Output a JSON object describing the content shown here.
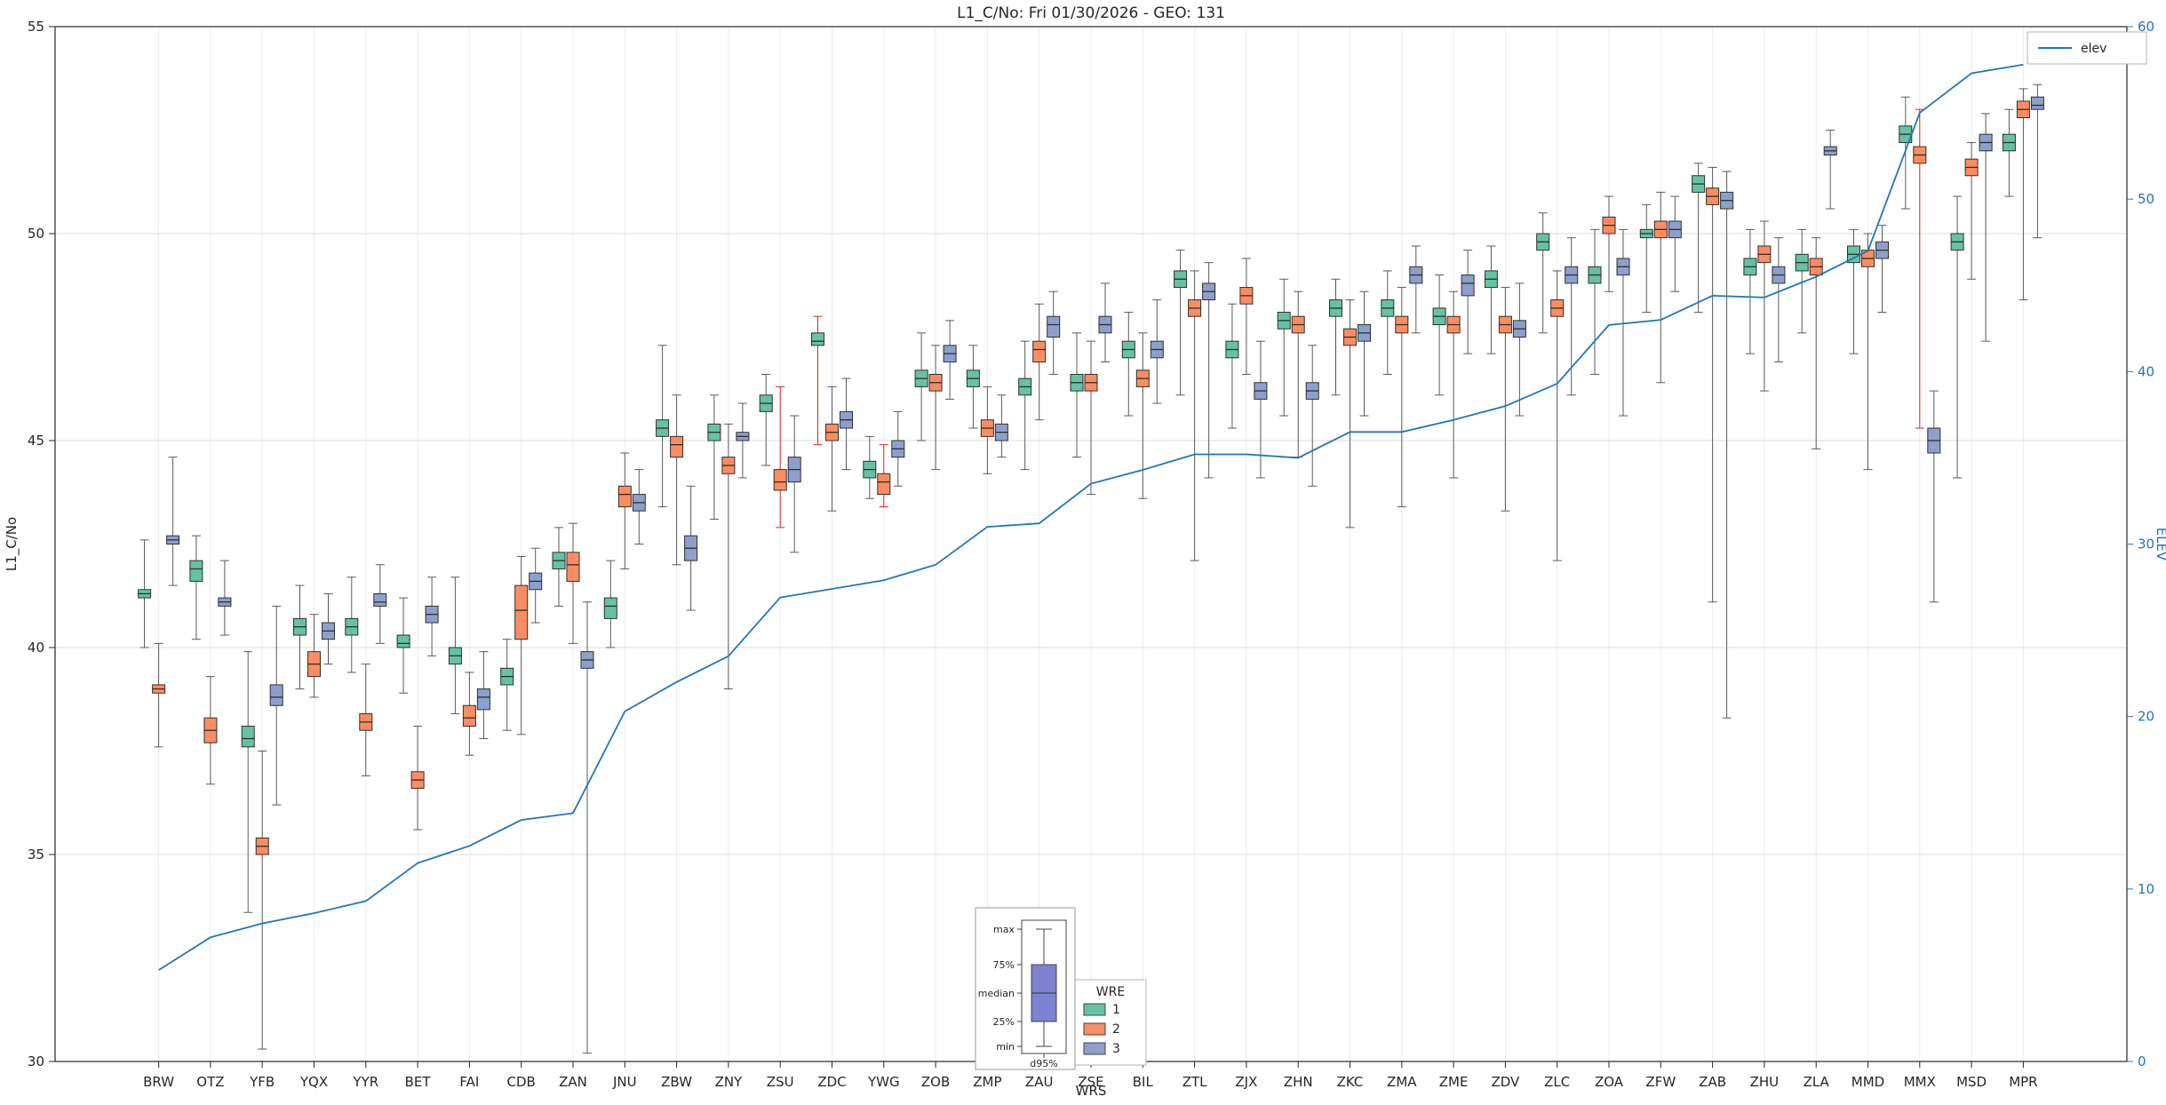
{
  "chart_data": {
    "type": "boxplot+line",
    "title": "L1_C/No: Fri 01/30/2026 - GEO: 131",
    "xlabel": "WRS",
    "ylabel": "L1_C/No",
    "y2label": "ELEV",
    "ylim": [
      30,
      55
    ],
    "y2lim": [
      0,
      60
    ],
    "yticks": [
      30,
      35,
      40,
      45,
      50,
      55
    ],
    "y2ticks": [
      0,
      10,
      20,
      30,
      40,
      50,
      60
    ],
    "grid": true,
    "legend_wre": {
      "title": "WRE",
      "position": "bottom-center"
    },
    "legend_elev": {
      "label": "elev",
      "position": "top-right"
    },
    "inset": {
      "labels": [
        "max",
        "75%",
        "median",
        "25%",
        "min"
      ],
      "xlabel": "d95%",
      "box_color": "#7d82d1"
    },
    "axis_colors": {
      "left": "#262626",
      "right": "#1f77b4"
    },
    "categories": [
      "BRW",
      "OTZ",
      "YFB",
      "YQX",
      "YYR",
      "BET",
      "FAI",
      "CDB",
      "ZAN",
      "JNU",
      "ZBW",
      "ZNY",
      "ZSU",
      "ZDC",
      "YWG",
      "ZOB",
      "ZMP",
      "ZAU",
      "ZSE",
      "BIL",
      "ZTL",
      "ZJX",
      "ZHN",
      "ZKC",
      "ZMA",
      "ZME",
      "ZDV",
      "ZLC",
      "ZOA",
      "ZFW",
      "ZAB",
      "ZHU",
      "ZLA",
      "MMD",
      "MMX",
      "MSD",
      "MPR"
    ],
    "series": [
      {
        "name": "1",
        "color": "#66c2a5",
        "boxes": [
          [
            40.0,
            41.2,
            41.3,
            41.4,
            42.6
          ],
          [
            40.2,
            41.6,
            41.9,
            42.1,
            42.7
          ],
          [
            33.6,
            37.6,
            37.8,
            38.1,
            39.9
          ],
          [
            39.0,
            40.3,
            40.5,
            40.7,
            41.5
          ],
          [
            39.4,
            40.3,
            40.5,
            40.7,
            41.7
          ],
          [
            38.9,
            40.0,
            40.1,
            40.3,
            41.2
          ],
          [
            38.4,
            39.6,
            39.8,
            40.0,
            41.7
          ],
          [
            38.0,
            39.1,
            39.3,
            39.5,
            40.2
          ],
          [
            41.0,
            41.9,
            42.1,
            42.3,
            42.9
          ],
          [
            40.0,
            40.7,
            41.0,
            41.2,
            42.1
          ],
          [
            43.4,
            45.1,
            45.3,
            45.5,
            47.3
          ],
          [
            43.1,
            45.0,
            45.2,
            45.4,
            46.1
          ],
          [
            44.4,
            45.7,
            45.9,
            46.1,
            46.6
          ],
          [
            44.9,
            47.3,
            47.4,
            47.6,
            48.0
          ],
          [
            43.6,
            44.1,
            44.3,
            44.5,
            45.1
          ],
          [
            45.0,
            46.3,
            46.5,
            46.7,
            47.6
          ],
          [
            45.3,
            46.3,
            46.5,
            46.7,
            47.3
          ],
          [
            44.3,
            46.1,
            46.3,
            46.5,
            47.4
          ],
          [
            44.6,
            46.2,
            46.4,
            46.6,
            47.6
          ],
          [
            45.6,
            47.0,
            47.2,
            47.4,
            48.1
          ],
          [
            46.1,
            48.7,
            48.9,
            49.1,
            49.6
          ],
          [
            45.3,
            47.0,
            47.2,
            47.4,
            48.3
          ],
          [
            45.6,
            47.7,
            47.9,
            48.1,
            48.9
          ],
          [
            46.1,
            48.0,
            48.2,
            48.4,
            48.9
          ],
          [
            46.6,
            48.0,
            48.2,
            48.4,
            49.1
          ],
          [
            46.1,
            47.8,
            48.0,
            48.2,
            49.0
          ],
          [
            47.1,
            48.7,
            48.9,
            49.1,
            49.7
          ],
          [
            47.6,
            49.6,
            49.8,
            50.0,
            50.5
          ],
          [
            46.6,
            48.8,
            49.0,
            49.2,
            50.1
          ],
          [
            48.1,
            49.9,
            50.0,
            50.1,
            50.7
          ],
          [
            48.1,
            51.0,
            51.2,
            51.4,
            51.7
          ],
          [
            47.1,
            49.0,
            49.2,
            49.4,
            50.1
          ],
          [
            47.6,
            49.1,
            49.3,
            49.5,
            50.1
          ],
          [
            47.1,
            49.3,
            49.5,
            49.7,
            50.1
          ],
          [
            50.6,
            52.2,
            52.4,
            52.6,
            53.3
          ],
          [
            44.1,
            49.6,
            49.8,
            50.0,
            50.9
          ],
          [
            50.9,
            52.0,
            52.2,
            52.4,
            53.0
          ]
        ]
      },
      {
        "name": "2",
        "color": "#fc8d62",
        "boxes": [
          [
            37.6,
            38.9,
            39.0,
            39.1,
            40.1
          ],
          [
            36.7,
            37.7,
            38.0,
            38.3,
            39.3
          ],
          [
            30.3,
            35.0,
            35.2,
            35.4,
            37.5
          ],
          [
            38.8,
            39.3,
            39.6,
            39.9,
            40.8
          ],
          [
            36.9,
            38.0,
            38.2,
            38.4,
            39.6
          ],
          [
            35.6,
            36.6,
            36.8,
            37.0,
            38.1
          ],
          [
            37.4,
            38.1,
            38.3,
            38.6,
            39.4
          ],
          [
            37.9,
            40.2,
            40.9,
            41.5,
            42.2
          ],
          [
            40.1,
            41.6,
            42.0,
            42.3,
            43.0
          ],
          [
            41.9,
            43.4,
            43.7,
            43.9,
            44.7
          ],
          [
            42.0,
            44.6,
            44.9,
            45.1,
            46.1
          ],
          [
            39.0,
            44.2,
            44.4,
            44.6,
            45.4
          ],
          [
            42.9,
            43.8,
            44.0,
            44.3,
            46.3
          ],
          [
            43.3,
            45.0,
            45.2,
            45.4,
            46.3
          ],
          [
            43.4,
            43.7,
            44.0,
            44.2,
            44.9
          ],
          [
            44.3,
            46.2,
            46.4,
            46.6,
            47.3
          ],
          [
            44.2,
            45.1,
            45.3,
            45.5,
            46.3
          ],
          [
            45.5,
            46.9,
            47.2,
            47.4,
            48.3
          ],
          [
            43.7,
            46.2,
            46.4,
            46.6,
            47.4
          ],
          [
            43.6,
            46.3,
            46.5,
            46.7,
            47.6
          ],
          [
            42.1,
            48.0,
            48.2,
            48.4,
            49.1
          ],
          [
            46.6,
            48.3,
            48.5,
            48.7,
            49.4
          ],
          [
            44.6,
            47.6,
            47.8,
            48.0,
            48.6
          ],
          [
            42.9,
            47.3,
            47.5,
            47.7,
            48.4
          ],
          [
            43.4,
            47.6,
            47.8,
            48.0,
            48.7
          ],
          [
            44.1,
            47.6,
            47.8,
            48.0,
            48.6
          ],
          [
            43.3,
            47.6,
            47.8,
            48.0,
            48.7
          ],
          [
            42.1,
            48.0,
            48.2,
            48.4,
            49.1
          ],
          [
            48.6,
            50.0,
            50.2,
            50.4,
            50.9
          ],
          [
            46.4,
            49.9,
            50.1,
            50.3,
            51.0
          ],
          [
            41.1,
            50.7,
            50.9,
            51.1,
            51.6
          ],
          [
            46.2,
            49.3,
            49.5,
            49.7,
            50.3
          ],
          [
            44.8,
            49.0,
            49.2,
            49.4,
            49.9
          ],
          [
            44.3,
            49.2,
            49.4,
            49.6,
            50.0
          ],
          [
            45.3,
            51.7,
            51.9,
            52.1,
            53.0
          ],
          [
            48.9,
            51.4,
            51.6,
            51.8,
            52.2
          ],
          [
            48.4,
            52.8,
            53.0,
            53.2,
            53.5
          ]
        ]
      },
      {
        "name": "3",
        "color": "#8da0cb",
        "boxes": [
          [
            41.5,
            42.5,
            42.6,
            42.7,
            44.6
          ],
          [
            40.3,
            41.0,
            41.1,
            41.2,
            42.1
          ],
          [
            36.2,
            38.6,
            38.8,
            39.1,
            41.0
          ],
          [
            39.6,
            40.2,
            40.4,
            40.6,
            41.3
          ],
          [
            40.1,
            41.0,
            41.1,
            41.3,
            42.0
          ],
          [
            39.8,
            40.6,
            40.8,
            41.0,
            41.7
          ],
          [
            37.8,
            38.5,
            38.8,
            39.0,
            39.9
          ],
          [
            40.6,
            41.4,
            41.6,
            41.8,
            42.4
          ],
          [
            30.2,
            39.5,
            39.7,
            39.9,
            41.1
          ],
          [
            42.5,
            43.3,
            43.5,
            43.7,
            44.3
          ],
          [
            40.9,
            42.1,
            42.4,
            42.7,
            43.9
          ],
          [
            44.1,
            45.0,
            45.1,
            45.2,
            45.9
          ],
          [
            42.3,
            44.0,
            44.3,
            44.6,
            45.6
          ],
          [
            44.3,
            45.3,
            45.5,
            45.7,
            46.5
          ],
          [
            43.9,
            44.6,
            44.8,
            45.0,
            45.7
          ],
          [
            46.0,
            46.9,
            47.1,
            47.3,
            47.9
          ],
          [
            44.6,
            45.0,
            45.2,
            45.4,
            46.1
          ],
          [
            46.6,
            47.5,
            47.8,
            48.0,
            48.6
          ],
          [
            46.9,
            47.6,
            47.8,
            48.0,
            48.8
          ],
          [
            45.9,
            47.0,
            47.2,
            47.4,
            48.4
          ],
          [
            44.1,
            48.4,
            48.6,
            48.8,
            49.3
          ],
          [
            44.1,
            46.0,
            46.2,
            46.4,
            47.4
          ],
          [
            43.9,
            46.0,
            46.2,
            46.4,
            47.3
          ],
          [
            45.6,
            47.4,
            47.6,
            47.8,
            48.6
          ],
          [
            47.6,
            48.8,
            49.0,
            49.2,
            49.7
          ],
          [
            47.1,
            48.5,
            48.8,
            49.0,
            49.6
          ],
          [
            45.6,
            47.5,
            47.7,
            47.9,
            48.8
          ],
          [
            46.1,
            48.8,
            49.0,
            49.2,
            49.9
          ],
          [
            45.6,
            49.0,
            49.2,
            49.4,
            50.1
          ],
          [
            48.6,
            49.9,
            50.1,
            50.3,
            50.9
          ],
          [
            38.3,
            50.6,
            50.8,
            51.0,
            51.5
          ],
          [
            46.9,
            48.8,
            49.0,
            49.2,
            49.9
          ],
          [
            50.6,
            51.9,
            52.0,
            52.1,
            52.5
          ],
          [
            48.1,
            49.4,
            49.6,
            49.8,
            50.2
          ],
          [
            41.1,
            44.7,
            45.0,
            45.3,
            46.2
          ],
          [
            47.4,
            52.0,
            52.2,
            52.4,
            52.9
          ],
          [
            49.9,
            53.0,
            53.1,
            53.3,
            53.6
          ]
        ]
      }
    ],
    "red_whiskers": [
      [
        12,
        1
      ],
      [
        13,
        0
      ],
      [
        14,
        1
      ],
      [
        34,
        1
      ]
    ],
    "red_whisker_color": "#d62728",
    "elev_line": {
      "label": "elev",
      "color": "#1f77b4",
      "axis": "right",
      "values": [
        5.3,
        7.2,
        8.0,
        8.6,
        9.3,
        11.5,
        12.5,
        14.0,
        14.4,
        20.3,
        22.0,
        23.5,
        26.9,
        27.4,
        27.9,
        28.8,
        31.0,
        31.2,
        33.5,
        34.3,
        35.2,
        35.2,
        35.0,
        36.5,
        36.5,
        37.2,
        38.0,
        39.3,
        42.7,
        43.0,
        44.4,
        44.3,
        45.5,
        47.0,
        55.0,
        57.3,
        57.8
      ]
    }
  }
}
